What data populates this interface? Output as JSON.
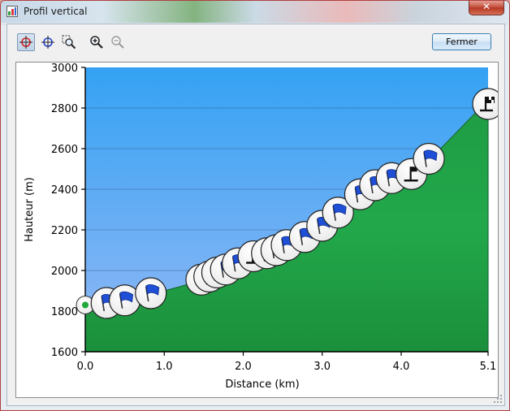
{
  "window": {
    "title": "Profil vertical",
    "close_label": "✕",
    "close_button": "Fermer"
  },
  "toolbar": {
    "icons": [
      "crosshair-red-icon",
      "crosshair-blue-icon",
      "zoom-region-icon",
      "zoom-in-icon",
      "zoom-out-icon"
    ]
  },
  "chart_data": {
    "type": "area",
    "xlabel": "Distance   (km)",
    "ylabel": "Hauteur (m)",
    "xlim": [
      0,
      5.1
    ],
    "ylim": [
      1600,
      3000
    ],
    "x_ticks": [
      0.0,
      1.0,
      2.0,
      3.0,
      4.0,
      5.1
    ],
    "x_tick_labels": [
      "0.0",
      "1.0",
      "2.0",
      "3.0",
      "4.0",
      "5.1"
    ],
    "y_ticks": [
      1600,
      1800,
      2000,
      2200,
      2400,
      2600,
      2800,
      3000
    ],
    "y_tick_labels": [
      "1600",
      "1800",
      "2000",
      "2200",
      "2400",
      "2600",
      "2800",
      "3000"
    ],
    "grid": true,
    "colors": {
      "sky_top": "#3aa3f2",
      "sky_bottom": "#8fb9f5",
      "terrain": "#22a84a",
      "terrain_line": "#1a6b36",
      "flag": "#1f4fd6"
    },
    "profile": {
      "x": [
        0.0,
        0.2,
        0.4,
        0.6,
        0.8,
        1.0,
        1.2,
        1.4,
        1.5,
        1.6,
        1.7,
        1.8,
        1.9,
        2.0,
        2.1,
        2.3,
        2.5,
        2.7,
        2.9,
        3.1,
        3.3,
        3.5,
        3.7,
        3.9,
        4.1,
        4.3,
        4.5,
        4.7,
        4.9,
        5.0,
        5.1
      ],
      "y": [
        1830,
        1845,
        1855,
        1865,
        1880,
        1900,
        1920,
        1945,
        1958,
        1975,
        1992,
        2008,
        2022,
        2040,
        2055,
        2085,
        2115,
        2150,
        2195,
        2240,
        2290,
        2345,
        2390,
        2440,
        2475,
        2530,
        2600,
        2680,
        2760,
        2800,
        2830
      ]
    },
    "markers": [
      {
        "x": 0.0,
        "y": 1830,
        "type": "start"
      },
      {
        "x": 0.27,
        "y": 1840,
        "type": "flag"
      },
      {
        "x": 0.5,
        "y": 1853,
        "type": "flag"
      },
      {
        "x": 0.83,
        "y": 1888,
        "type": "flag"
      },
      {
        "x": 1.47,
        "y": 1955,
        "type": "flag"
      },
      {
        "x": 1.57,
        "y": 1970,
        "type": "flag"
      },
      {
        "x": 1.67,
        "y": 1990,
        "type": "flag"
      },
      {
        "x": 1.78,
        "y": 2005,
        "type": "flag"
      },
      {
        "x": 1.93,
        "y": 2035,
        "type": "flag"
      },
      {
        "x": 2.13,
        "y": 2070,
        "type": "summit"
      },
      {
        "x": 2.3,
        "y": 2085,
        "type": "flag"
      },
      {
        "x": 2.42,
        "y": 2100,
        "type": "flag"
      },
      {
        "x": 2.55,
        "y": 2125,
        "type": "flag"
      },
      {
        "x": 2.78,
        "y": 2165,
        "type": "flag"
      },
      {
        "x": 3.0,
        "y": 2220,
        "type": "flag"
      },
      {
        "x": 3.2,
        "y": 2285,
        "type": "flag"
      },
      {
        "x": 3.48,
        "y": 2375,
        "type": "flag"
      },
      {
        "x": 3.67,
        "y": 2420,
        "type": "flag"
      },
      {
        "x": 3.88,
        "y": 2455,
        "type": "flag"
      },
      {
        "x": 4.13,
        "y": 2475,
        "type": "summit"
      },
      {
        "x": 4.35,
        "y": 2550,
        "type": "flag"
      },
      {
        "x": 5.1,
        "y": 2820,
        "type": "finish"
      }
    ]
  }
}
